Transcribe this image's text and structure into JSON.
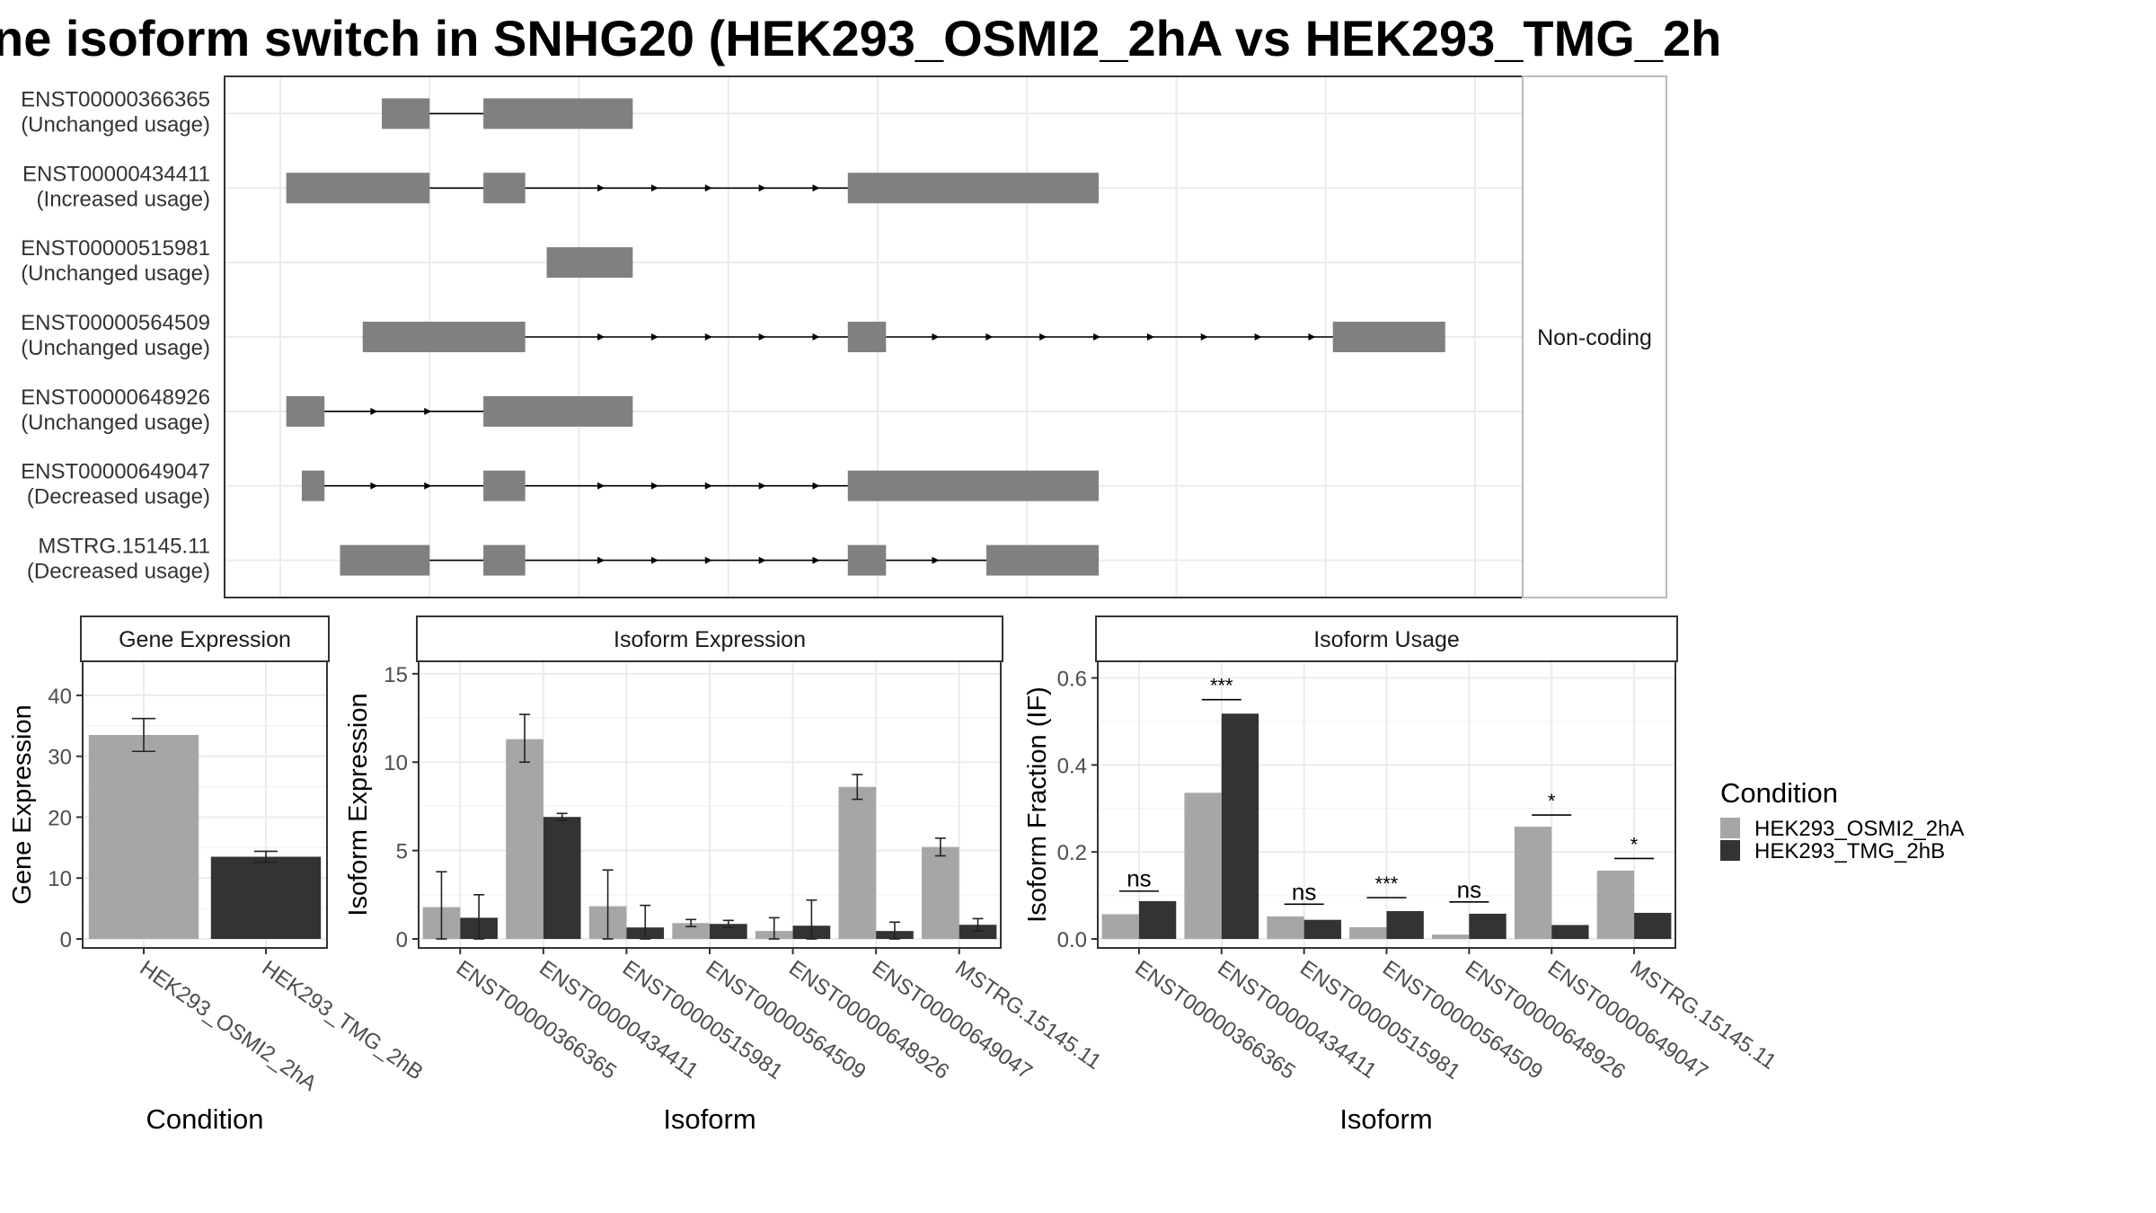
{
  "title": "ne isoform switch in SNHG20 (HEK293_OSMI2_2hA vs HEK293_TMG_2h",
  "colors": {
    "osmi": "#a6a6a6",
    "tmg": "#333333",
    "exon": "#808080",
    "grid": "#ebebeb",
    "strip_bg": "#ffffff"
  },
  "chart_data": [
    {
      "type": "gene-structure",
      "strip_label": "Non-coding",
      "x_range": [
        0,
        1000
      ],
      "tracks": [
        {
          "id": "ENST00000366365",
          "status": "(Unchanged usage)",
          "exons": [
            [
              85,
              125
            ],
            [
              170,
              295
            ]
          ],
          "arrows": []
        },
        {
          "id": "ENST00000434411",
          "status": "(Increased usage)",
          "exons": [
            [
              5,
              125
            ],
            [
              170,
              205
            ],
            [
              475,
              685
            ]
          ],
          "arrows": [
            270,
            315,
            360,
            405,
            450
          ]
        },
        {
          "id": "ENST00000515981",
          "status": "(Unchanged usage)",
          "exons": [
            [
              223,
              295
            ]
          ],
          "arrows": []
        },
        {
          "id": "ENST00000564509",
          "status": "(Unchanged usage)",
          "exons": [
            [
              69,
              205
            ],
            [
              475,
              507
            ],
            [
              881,
              975
            ]
          ],
          "arrows": [
            270,
            315,
            360,
            405,
            450,
            550,
            595,
            640,
            685,
            730,
            775,
            820,
            865
          ]
        },
        {
          "id": "ENST00000648926",
          "status": "(Unchanged usage)",
          "exons": [
            [
              5,
              37
            ],
            [
              170,
              295
            ]
          ],
          "arrows": [
            80,
            125
          ]
        },
        {
          "id": "ENST00000649047",
          "status": "(Decreased usage)",
          "exons": [
            [
              18,
              37
            ],
            [
              170,
              205
            ],
            [
              475,
              685
            ]
          ],
          "arrows": [
            80,
            125,
            270,
            315,
            360,
            405,
            450
          ]
        },
        {
          "id": "MSTRG.15145.11",
          "status": "(Decreased usage)",
          "exons": [
            [
              50,
              125
            ],
            [
              170,
              205
            ],
            [
              475,
              507
            ],
            [
              591,
              685
            ]
          ],
          "arrows": [
            270,
            315,
            360,
            405,
            450,
            550
          ]
        }
      ]
    },
    {
      "type": "bar",
      "strip": "Gene Expression",
      "ylabel": "Gene Expression",
      "xlabel": "Condition",
      "ylim": [
        0,
        45
      ],
      "yticks": [
        0,
        10,
        20,
        30,
        40
      ],
      "categories": [
        "HEK293_OSMI2_2hA",
        "HEK293_TMG_2hB"
      ],
      "values": [
        33.5,
        13.5
      ],
      "errors": [
        [
          30.8,
          36.2
        ],
        [
          12.6,
          14.4
        ]
      ]
    },
    {
      "type": "bar",
      "strip": "Isoform Expression",
      "ylabel": "Isoform Expression",
      "xlabel": "Isoform",
      "ylim": [
        0,
        15.5
      ],
      "yticks": [
        0,
        5,
        10,
        15
      ],
      "categories": [
        "ENST00000366365",
        "ENST00000434411",
        "ENST00000515981",
        "ENST00000564509",
        "ENST00000648926",
        "ENST00000649047",
        "MSTRG.15145.11"
      ],
      "series": [
        {
          "name": "HEK293_OSMI2_2hA",
          "values": [
            1.8,
            11.3,
            1.85,
            0.9,
            0.45,
            8.6,
            5.2
          ],
          "errors": [
            [
              0,
              3.8
            ],
            [
              10.0,
              12.7
            ],
            [
              0,
              3.9
            ],
            [
              0.7,
              1.1
            ],
            [
              0,
              1.2
            ],
            [
              7.9,
              9.3
            ],
            [
              4.7,
              5.7
            ]
          ]
        },
        {
          "name": "HEK293_TMG_2hB",
          "values": [
            1.2,
            6.9,
            0.65,
            0.85,
            0.75,
            0.45,
            0.8
          ],
          "errors": [
            [
              0,
              2.5
            ],
            [
              6.7,
              7.1
            ],
            [
              0,
              1.9
            ],
            [
              0.65,
              1.05
            ],
            [
              0,
              2.2
            ],
            [
              0,
              0.95
            ],
            [
              0.45,
              1.15
            ]
          ]
        }
      ]
    },
    {
      "type": "bar",
      "strip": "Isoform Usage",
      "ylabel": "Isoform Fraction (IF)",
      "xlabel": "Isoform",
      "ylim": [
        0,
        0.63
      ],
      "yticks": [
        0,
        0.2,
        0.4,
        0.6
      ],
      "ytick_labels": [
        "0.0",
        "0.2",
        "0.4",
        "0.6"
      ],
      "categories": [
        "ENST00000366365",
        "ENST00000434411",
        "ENST00000515981",
        "ENST00000564509",
        "ENST00000648926",
        "ENST00000649047",
        "MSTRG.15145.11"
      ],
      "series": [
        {
          "name": "HEK293_OSMI2_2hA",
          "values": [
            0.057,
            0.336,
            0.052,
            0.027,
            0.01,
            0.258,
            0.157
          ]
        },
        {
          "name": "HEK293_TMG_2hB",
          "values": [
            0.087,
            0.518,
            0.044,
            0.064,
            0.058,
            0.032,
            0.06
          ]
        }
      ],
      "significance": [
        "ns",
        "***",
        "ns",
        "***",
        "ns",
        "*",
        "*"
      ],
      "sig_y": [
        0.11,
        0.55,
        0.08,
        0.095,
        0.085,
        0.285,
        0.185
      ]
    }
  ],
  "legend": {
    "title": "Condition",
    "items": [
      "HEK293_OSMI2_2hA",
      "HEK293_TMG_2hB"
    ]
  }
}
